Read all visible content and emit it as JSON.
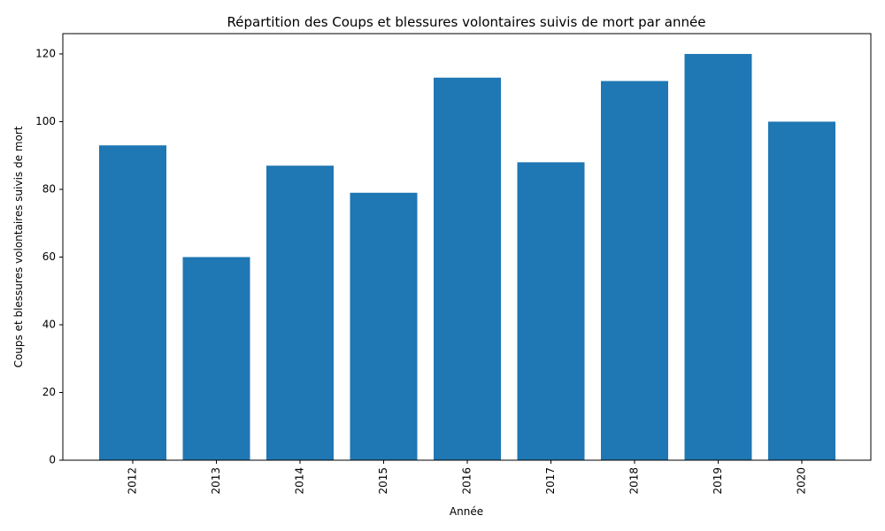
{
  "chart_data": {
    "type": "bar",
    "title": "Répartition des Coups et blessures volontaires suivis de mort par année",
    "xlabel": "Année",
    "ylabel": "Coups et blessures volontaires suivis de mort",
    "categories": [
      "2012",
      "2013",
      "2014",
      "2015",
      "2016",
      "2017",
      "2018",
      "2019",
      "2020"
    ],
    "values": [
      93,
      60,
      87,
      79,
      113,
      88,
      112,
      120,
      100
    ],
    "ylim": [
      0,
      126
    ],
    "yticks": [
      0,
      20,
      40,
      60,
      80,
      100,
      120
    ],
    "bar_color": "#1f77b4",
    "grid": false,
    "legend": "none"
  }
}
